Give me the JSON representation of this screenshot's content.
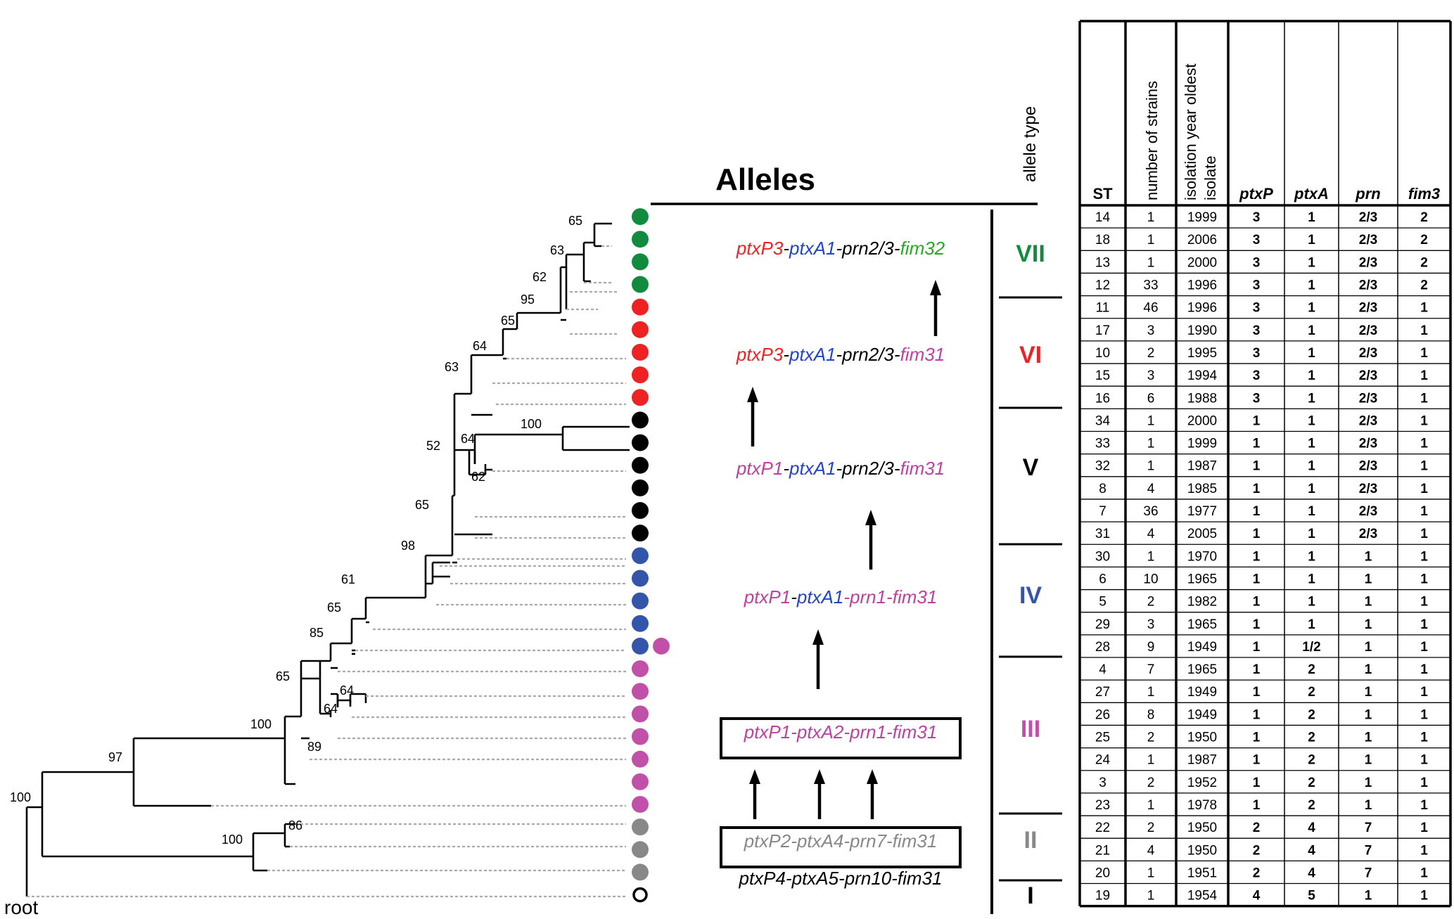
{
  "colors": {
    "VII": "#118c3e",
    "VI": "#ee2222",
    "V": "#000000",
    "IV": "#3355aa",
    "III": "#c050a8",
    "II": "#888888",
    "I": "#000000",
    "ptxP3": "#ee2222",
    "ptxA1": "#2244cc",
    "ptxP1": "#c040a0",
    "fim32": "#22aa22",
    "grey": "#888888"
  },
  "tree": {
    "root_label": "root",
    "bootstraps": [
      "65",
      "63",
      "62",
      "95",
      "65",
      "64",
      "63",
      "100",
      "64",
      "62",
      "52",
      "65",
      "98",
      "61",
      "65",
      "85",
      "65",
      "64",
      "64",
      "89",
      "100",
      "97",
      "86",
      "100",
      "100"
    ],
    "leaf_groups": [
      "VII",
      "VII",
      "VII",
      "VII",
      "VI",
      "VI",
      "VI",
      "VI",
      "VI",
      "V",
      "V",
      "V",
      "V",
      "V",
      "V",
      "IV",
      "IV",
      "IV",
      "IV",
      "IV+III",
      "III",
      "III",
      "III",
      "III",
      "III",
      "III",
      "III",
      "II",
      "II",
      "II",
      "I"
    ]
  },
  "alleles": {
    "title": "Alleles",
    "types_header": "allele type",
    "types": [
      "VII",
      "VI",
      "V",
      "IV",
      "III",
      "II",
      "I"
    ],
    "profiles": [
      {
        "parts": [
          {
            "t": "ptxP3",
            "c": "ptxP3"
          },
          {
            "t": "-",
            "c": "V"
          },
          {
            "t": "ptxA1",
            "c": "ptxA1"
          },
          {
            "t": "-prn2/3-",
            "c": "V"
          },
          {
            "t": "fim32",
            "c": "fim32"
          }
        ]
      },
      {
        "parts": [
          {
            "t": "ptxP3",
            "c": "ptxP3"
          },
          {
            "t": "-",
            "c": "V"
          },
          {
            "t": "ptxA1",
            "c": "ptxA1"
          },
          {
            "t": "-prn2/3-",
            "c": "V"
          },
          {
            "t": "fim31",
            "c": "ptxP1"
          }
        ]
      },
      {
        "parts": [
          {
            "t": "ptxP1",
            "c": "ptxP1"
          },
          {
            "t": "-",
            "c": "V"
          },
          {
            "t": "ptxA1",
            "c": "ptxA1"
          },
          {
            "t": "-prn2/3-",
            "c": "V"
          },
          {
            "t": "fim31",
            "c": "ptxP1"
          }
        ]
      },
      {
        "parts": [
          {
            "t": "ptxP1",
            "c": "ptxP1"
          },
          {
            "t": "-",
            "c": "V"
          },
          {
            "t": "ptxA1",
            "c": "ptxA1"
          },
          {
            "t": "-prn1-fim31",
            "c": "ptxP1"
          }
        ]
      },
      {
        "parts": [
          {
            "t": "ptxP1-ptxA2-prn1-fim31",
            "c": "ptxP1"
          }
        ]
      },
      {
        "parts": [
          {
            "t": "ptxP2-ptxA4-prn7-fim31",
            "c": "grey"
          }
        ]
      },
      {
        "parts": [
          {
            "t": "ptxP4-ptxA5-prn10-fim31",
            "c": "V"
          }
        ]
      }
    ]
  },
  "table": {
    "headers": [
      "ST",
      "number of strains",
      "isolation year oldest isolate",
      "ptxP",
      "ptxA",
      "prn",
      "fim3"
    ],
    "rows": [
      [
        "14",
        "1",
        "1999",
        "3",
        "1",
        "2/3",
        "2"
      ],
      [
        "18",
        "1",
        "2006",
        "3",
        "1",
        "2/3",
        "2"
      ],
      [
        "13",
        "1",
        "2000",
        "3",
        "1",
        "2/3",
        "2"
      ],
      [
        "12",
        "33",
        "1996",
        "3",
        "1",
        "2/3",
        "2"
      ],
      [
        "11",
        "46",
        "1996",
        "3",
        "1",
        "2/3",
        "1"
      ],
      [
        "17",
        "3",
        "1990",
        "3",
        "1",
        "2/3",
        "1"
      ],
      [
        "10",
        "2",
        "1995",
        "3",
        "1",
        "2/3",
        "1"
      ],
      [
        "15",
        "3",
        "1994",
        "3",
        "1",
        "2/3",
        "1"
      ],
      [
        "16",
        "6",
        "1988",
        "3",
        "1",
        "2/3",
        "1"
      ],
      [
        "34",
        "1",
        "2000",
        "1",
        "1",
        "2/3",
        "1"
      ],
      [
        "33",
        "1",
        "1999",
        "1",
        "1",
        "2/3",
        "1"
      ],
      [
        "32",
        "1",
        "1987",
        "1",
        "1",
        "2/3",
        "1"
      ],
      [
        "8",
        "4",
        "1985",
        "1",
        "1",
        "2/3",
        "1"
      ],
      [
        "7",
        "36",
        "1977",
        "1",
        "1",
        "2/3",
        "1"
      ],
      [
        "31",
        "4",
        "2005",
        "1",
        "1",
        "2/3",
        "1"
      ],
      [
        "30",
        "1",
        "1970",
        "1",
        "1",
        "1",
        "1"
      ],
      [
        "6",
        "10",
        "1965",
        "1",
        "1",
        "1",
        "1"
      ],
      [
        "5",
        "2",
        "1982",
        "1",
        "1",
        "1",
        "1"
      ],
      [
        "29",
        "3",
        "1965",
        "1",
        "1",
        "1",
        "1"
      ],
      [
        "28",
        "9",
        "1949",
        "1",
        "1/2",
        "1",
        "1"
      ],
      [
        "4",
        "7",
        "1965",
        "1",
        "2",
        "1",
        "1"
      ],
      [
        "27",
        "1",
        "1949",
        "1",
        "2",
        "1",
        "1"
      ],
      [
        "26",
        "8",
        "1949",
        "1",
        "2",
        "1",
        "1"
      ],
      [
        "25",
        "2",
        "1950",
        "1",
        "2",
        "1",
        "1"
      ],
      [
        "24",
        "1",
        "1987",
        "1",
        "2",
        "1",
        "1"
      ],
      [
        "3",
        "2",
        "1952",
        "1",
        "2",
        "1",
        "1"
      ],
      [
        "23",
        "1",
        "1978",
        "1",
        "2",
        "1",
        "1"
      ],
      [
        "22",
        "2",
        "1950",
        "2",
        "4",
        "7",
        "1"
      ],
      [
        "21",
        "4",
        "1950",
        "2",
        "4",
        "7",
        "1"
      ],
      [
        "20",
        "1",
        "1951",
        "2",
        "4",
        "7",
        "1"
      ],
      [
        "19",
        "1",
        "1954",
        "4",
        "5",
        "1",
        "1"
      ]
    ]
  }
}
